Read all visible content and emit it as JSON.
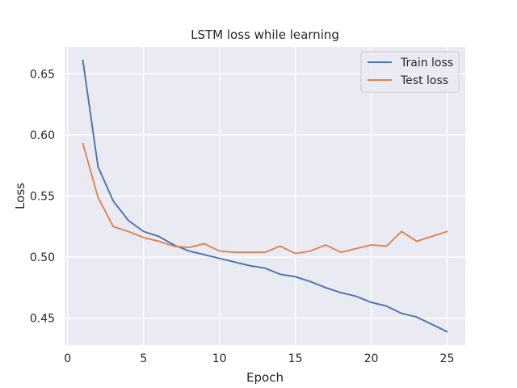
{
  "chart_data": {
    "type": "line",
    "title": "LSTM loss while learning",
    "xlabel": "Epoch",
    "ylabel": "Loss",
    "xlim": [
      -0.2,
      26.2
    ],
    "ylim": [
      0.428,
      0.672
    ],
    "xticks": [
      0,
      5,
      10,
      15,
      20,
      25
    ],
    "yticks": [
      0.45,
      0.5,
      0.55,
      0.6,
      0.65
    ],
    "ytick_labels": [
      "0.45",
      "0.50",
      "0.55",
      "0.60",
      "0.65"
    ],
    "grid": true,
    "legend_position": "top-right",
    "x": [
      1,
      2,
      3,
      4,
      5,
      6,
      7,
      8,
      9,
      10,
      11,
      12,
      13,
      14,
      15,
      16,
      17,
      18,
      19,
      20,
      21,
      22,
      23,
      24,
      25
    ],
    "series": [
      {
        "name": "Train loss",
        "color": "#4c72b0",
        "values": [
          0.661,
          0.574,
          0.546,
          0.53,
          0.521,
          0.517,
          0.51,
          0.505,
          0.502,
          0.499,
          0.496,
          0.493,
          0.491,
          0.486,
          0.484,
          0.48,
          0.475,
          0.471,
          0.468,
          0.463,
          0.46,
          0.454,
          0.451,
          0.445,
          0.439
        ]
      },
      {
        "name": "Test loss",
        "color": "#dd8452",
        "values": [
          0.593,
          0.549,
          0.525,
          0.521,
          0.516,
          0.513,
          0.509,
          0.508,
          0.511,
          0.505,
          0.504,
          0.504,
          0.504,
          0.509,
          0.503,
          0.505,
          0.51,
          0.504,
          0.507,
          0.51,
          0.509,
          0.521,
          0.513,
          0.517,
          0.521
        ]
      }
    ]
  }
}
